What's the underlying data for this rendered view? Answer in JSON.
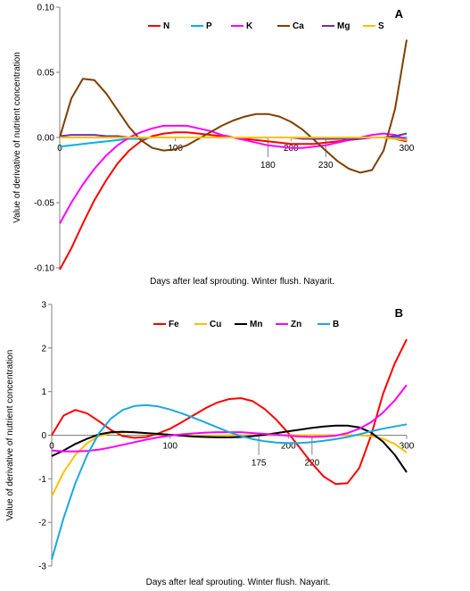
{
  "chart_data": [
    {
      "type": "line",
      "panel_label": "A",
      "xlabel": "Days after leaf sprouting. Winter flush. Nayarit.",
      "ylabel": "Value of derivative of nutrient concentration",
      "xlim": [
        0,
        300
      ],
      "ylim": [
        -0.1,
        0.1
      ],
      "x_ticks": [
        "0",
        "100",
        "200",
        "300"
      ],
      "y_ticks": [
        "0.10",
        "0.05",
        "0.00",
        "-0.05",
        "-0.10"
      ],
      "y_tick_values": [
        0.1,
        0.05,
        0.0,
        -0.05,
        -0.1
      ],
      "grid": false,
      "legend_position": "top",
      "annotations": [
        {
          "x": 180,
          "label": "180"
        },
        {
          "x": 230,
          "label": "230"
        }
      ],
      "x": [
        0,
        10,
        20,
        30,
        40,
        50,
        60,
        70,
        80,
        90,
        100,
        110,
        120,
        130,
        140,
        150,
        160,
        170,
        180,
        190,
        200,
        210,
        220,
        230,
        240,
        250,
        260,
        270,
        280,
        290,
        300
      ],
      "series": [
        {
          "name": "N",
          "color": "#ff0000",
          "values": [
            -0.105,
            -0.085,
            -0.066,
            -0.048,
            -0.033,
            -0.02,
            -0.01,
            -0.003,
            0.001,
            0.003,
            0.004,
            0.004,
            0.003,
            0.002,
            0.001,
            0.0,
            -0.001,
            -0.002,
            -0.003,
            -0.004,
            -0.005,
            -0.005,
            -0.005,
            -0.004,
            -0.003,
            -0.002,
            -0.001,
            0.0,
            0.0,
            -0.001,
            -0.003
          ]
        },
        {
          "name": "P",
          "color": "#00b0f0",
          "values": [
            -0.007,
            -0.006,
            -0.005,
            -0.004,
            -0.003,
            -0.002,
            -0.001,
            -0.001,
            0.0,
            0.0,
            0.0,
            0.0,
            0.0,
            0.0,
            0.0,
            0.0,
            0.0,
            0.0,
            0.0,
            0.0,
            0.0,
            0.0,
            0.0,
            0.0,
            0.0,
            0.0,
            0.0,
            0.0,
            0.0,
            0.0,
            0.0
          ]
        },
        {
          "name": "K",
          "color": "#ff00ff",
          "values": [
            -0.066,
            -0.05,
            -0.036,
            -0.024,
            -0.014,
            -0.006,
            0.0,
            0.004,
            0.007,
            0.009,
            0.009,
            0.009,
            0.007,
            0.005,
            0.002,
            0.0,
            -0.002,
            -0.004,
            -0.006,
            -0.007,
            -0.008,
            -0.008,
            -0.007,
            -0.006,
            -0.004,
            -0.002,
            0.0,
            0.002,
            0.003,
            0.002,
            -0.002
          ]
        },
        {
          "name": "Ca",
          "color": "#7f3f00",
          "values": [
            0.0,
            0.03,
            0.045,
            0.044,
            0.034,
            0.021,
            0.008,
            -0.002,
            -0.008,
            -0.01,
            -0.009,
            -0.006,
            -0.001,
            0.004,
            0.009,
            0.013,
            0.016,
            0.018,
            0.018,
            0.016,
            0.012,
            0.006,
            -0.002,
            -0.01,
            -0.018,
            -0.024,
            -0.027,
            -0.025,
            -0.01,
            0.022,
            0.075
          ]
        },
        {
          "name": "Mg",
          "color": "#7030a0",
          "values": [
            0.001,
            0.002,
            0.002,
            0.002,
            0.001,
            0.001,
            0.0,
            0.0,
            0.0,
            0.0,
            0.0,
            0.0,
            0.0,
            0.0,
            0.0,
            0.0,
            0.0,
            0.0,
            0.0,
            0.0,
            0.0,
            -0.001,
            -0.001,
            -0.001,
            -0.001,
            -0.001,
            -0.001,
            0.0,
            0.0,
            0.001,
            0.003
          ]
        },
        {
          "name": "S",
          "color": "#ffc000",
          "values": [
            0.0,
            0.0,
            0.0,
            0.0,
            0.0,
            0.0,
            0.0,
            0.0,
            0.0,
            0.0,
            0.0,
            0.0,
            0.0,
            0.0,
            0.0,
            0.0,
            0.0,
            0.0,
            0.0,
            0.0,
            0.0,
            0.0,
            0.0,
            0.0,
            0.0,
            0.0,
            0.0,
            0.0,
            0.0,
            -0.001,
            -0.002
          ]
        }
      ]
    },
    {
      "type": "line",
      "panel_label": "B",
      "xlabel": "Days after leaf sprouting. Winter flush. Nayarit.",
      "ylabel": "Value of derivative of nutrient concentration",
      "xlim": [
        0,
        300
      ],
      "ylim": [
        -3,
        3
      ],
      "x_ticks": [
        "0",
        "100",
        "200",
        "300"
      ],
      "y_ticks": [
        "3",
        "2",
        "1",
        "0",
        "-1",
        "-2",
        "-3"
      ],
      "y_tick_values": [
        3,
        2,
        1,
        0,
        -1,
        -2,
        -3
      ],
      "grid": false,
      "legend_position": "top",
      "annotations": [
        {
          "x": 175,
          "label": "175"
        },
        {
          "x": 220,
          "label": "220"
        }
      ],
      "x": [
        0,
        10,
        20,
        30,
        40,
        50,
        60,
        70,
        80,
        90,
        100,
        110,
        120,
        130,
        140,
        150,
        160,
        170,
        180,
        190,
        200,
        210,
        220,
        230,
        240,
        250,
        260,
        270,
        280,
        290,
        300
      ],
      "series": [
        {
          "name": "Fe",
          "color": "#ff0000",
          "values": [
            0.0,
            0.45,
            0.58,
            0.5,
            0.32,
            0.12,
            -0.02,
            -0.06,
            -0.04,
            0.04,
            0.15,
            0.3,
            0.46,
            0.62,
            0.75,
            0.83,
            0.85,
            0.78,
            0.6,
            0.35,
            0.05,
            -0.3,
            -0.65,
            -0.95,
            -1.12,
            -1.1,
            -0.75,
            0.0,
            0.95,
            1.65,
            2.2
          ]
        },
        {
          "name": "Cu",
          "color": "#ffc000",
          "values": [
            -1.4,
            -0.85,
            -0.45,
            -0.18,
            -0.02,
            0.05,
            0.07,
            0.06,
            0.04,
            0.02,
            0.01,
            0.0,
            -0.01,
            -0.01,
            -0.01,
            0.0,
            0.0,
            0.0,
            0.0,
            0.0,
            0.0,
            0.0,
            0.0,
            0.0,
            0.0,
            0.0,
            0.0,
            -0.02,
            -0.08,
            -0.2,
            -0.4
          ]
        },
        {
          "name": "Mn",
          "color": "#000000",
          "values": [
            -0.48,
            -0.35,
            -0.2,
            -0.08,
            0.02,
            0.07,
            0.08,
            0.07,
            0.05,
            0.03,
            0.01,
            -0.01,
            -0.03,
            -0.04,
            -0.05,
            -0.05,
            -0.04,
            -0.02,
            0.01,
            0.05,
            0.09,
            0.13,
            0.17,
            0.2,
            0.22,
            0.22,
            0.18,
            0.06,
            -0.15,
            -0.45,
            -0.85
          ]
        },
        {
          "name": "Zn",
          "color": "#ff00ff",
          "values": [
            -0.35,
            -0.37,
            -0.37,
            -0.36,
            -0.33,
            -0.28,
            -0.22,
            -0.16,
            -0.1,
            -0.05,
            -0.01,
            0.02,
            0.04,
            0.06,
            0.07,
            0.07,
            0.07,
            0.05,
            0.03,
            0.01,
            -0.01,
            -0.03,
            -0.04,
            -0.03,
            -0.01,
            0.05,
            0.15,
            0.3,
            0.52,
            0.8,
            1.15
          ]
        },
        {
          "name": "B",
          "color": "#1ca8dd",
          "values": [
            -2.85,
            -1.9,
            -1.1,
            -0.45,
            0.05,
            0.38,
            0.58,
            0.67,
            0.69,
            0.66,
            0.59,
            0.5,
            0.4,
            0.29,
            0.18,
            0.07,
            -0.02,
            -0.09,
            -0.14,
            -0.17,
            -0.18,
            -0.18,
            -0.16,
            -0.13,
            -0.09,
            -0.04,
            0.02,
            0.09,
            0.15,
            0.2,
            0.25
          ]
        }
      ]
    }
  ]
}
